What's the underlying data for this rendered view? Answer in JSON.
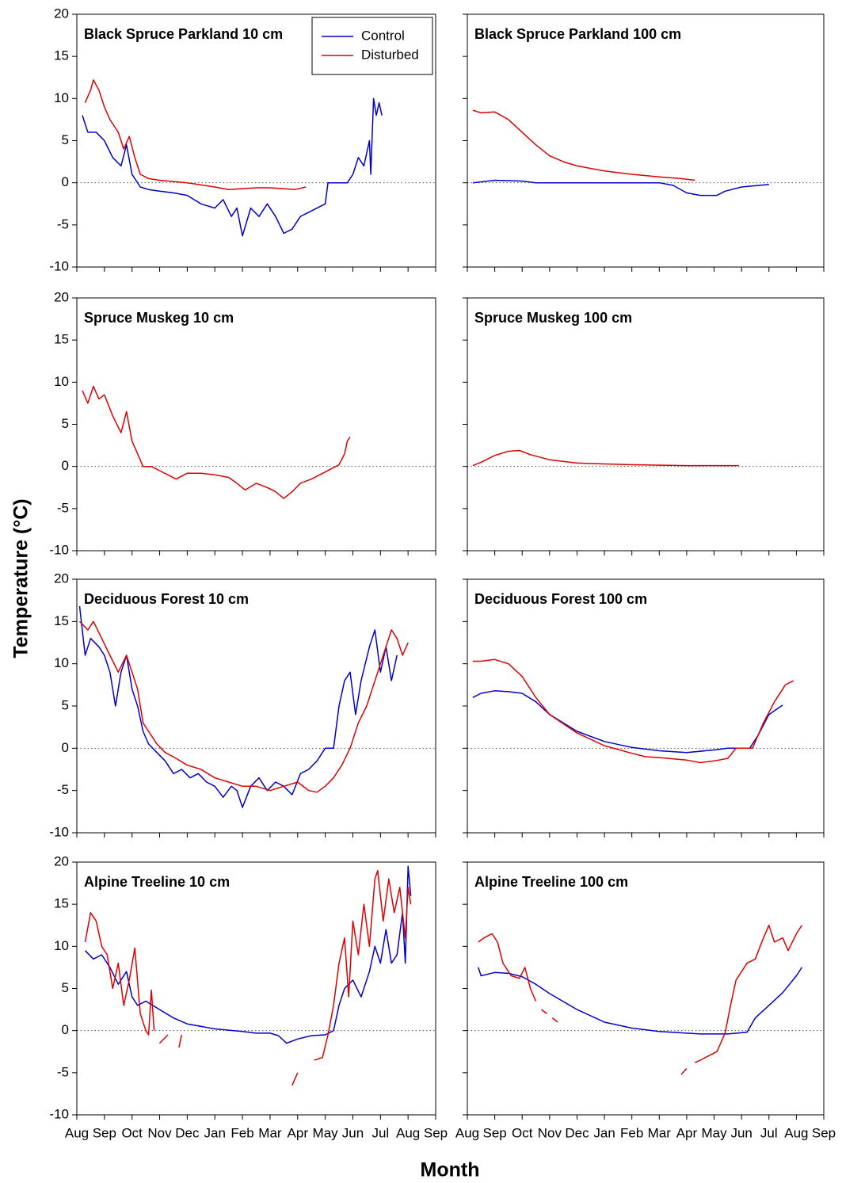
{
  "xlabel": "Month",
  "ylabel": "Temperature (°C)",
  "xlim": [
    0,
    13
  ],
  "xticks": [
    {
      "value": 0,
      "label": "Aug"
    },
    {
      "value": 1,
      "label": "Sep"
    },
    {
      "value": 2,
      "label": "Oct"
    },
    {
      "value": 3,
      "label": "Nov"
    },
    {
      "value": 4,
      "label": "Dec"
    },
    {
      "value": 5,
      "label": "Jan"
    },
    {
      "value": 6,
      "label": "Feb"
    },
    {
      "value": 7,
      "label": "Mar"
    },
    {
      "value": 8,
      "label": "Apr"
    },
    {
      "value": 9,
      "label": "May"
    },
    {
      "value": 10,
      "label": "Jun"
    },
    {
      "value": 11,
      "label": "Jul"
    },
    {
      "value": 12,
      "label": "Aug"
    },
    {
      "value": 13,
      "label": "Sep"
    }
  ],
  "chart_data": [
    {
      "type": "line",
      "title": "Black Spruce Parkland 10 cm",
      "ylim": [
        -10,
        20
      ],
      "yticks": [
        -10,
        -5,
        0,
        5,
        10,
        15,
        20
      ],
      "reference_line": 0,
      "legend": "top-right",
      "series": [
        {
          "name": "Control",
          "color": "#0000cc",
          "x": [
            0.2,
            0.4,
            0.7,
            1.0,
            1.3,
            1.6,
            1.8,
            2.0,
            2.3,
            2.6,
            3.0,
            3.5,
            4.0,
            4.5,
            5.0,
            5.3,
            5.6,
            5.8,
            6.0,
            6.3,
            6.6,
            6.9,
            7.2,
            7.5,
            7.8,
            8.1,
            8.4,
            8.7,
            9.0,
            9.1,
            9.8,
            10.0,
            10.2,
            10.4,
            10.6,
            10.65,
            10.75,
            10.85,
            10.95,
            11.05
          ],
          "values": [
            8,
            6,
            6,
            5,
            3,
            2,
            4.5,
            1,
            -0.5,
            -0.8,
            -1,
            -1.2,
            -1.5,
            -2.5,
            -3,
            -2,
            -4,
            -3,
            -6.3,
            -3,
            -4,
            -2.5,
            -4,
            -6,
            -5.5,
            -4,
            -3.5,
            -3,
            -2.5,
            0,
            0,
            1,
            3,
            2,
            5,
            1,
            10,
            8,
            9.5,
            8
          ]
        },
        {
          "name": "Disturbed",
          "color": "#dd0000",
          "x": [
            0.3,
            0.5,
            0.6,
            0.8,
            1.0,
            1.2,
            1.5,
            1.7,
            1.9,
            2.1,
            2.3,
            2.6,
            3.0,
            4.0,
            5.0,
            5.5,
            6.0,
            6.5,
            7.0,
            7.5,
            7.9,
            8.3
          ],
          "values": [
            9.5,
            11,
            12.2,
            11,
            9,
            7.5,
            6,
            4,
            5.5,
            3,
            1,
            0.5,
            0.3,
            0,
            -0.5,
            -0.8,
            -0.7,
            -0.6,
            -0.6,
            -0.7,
            -0.8,
            -0.5
          ]
        }
      ]
    },
    {
      "type": "line",
      "title": "Black Spruce Parkland 100 cm",
      "ylim": [
        -10,
        20
      ],
      "yticks": [
        -10,
        -5,
        0,
        5,
        10,
        15,
        20
      ],
      "reference_line": 0,
      "series": [
        {
          "color": "#0000cc",
          "x": [
            0.2,
            1.0,
            2.0,
            2.5,
            4.0,
            6.0,
            7.0,
            7.5,
            8.0,
            8.5,
            9.1,
            9.4,
            10.0,
            11.0
          ],
          "values": [
            0,
            0.3,
            0.2,
            0,
            0,
            0,
            0,
            -0.3,
            -1.2,
            -1.5,
            -1.5,
            -1,
            -0.5,
            -0.2
          ]
        },
        {
          "color": "#dd0000",
          "x": [
            0.2,
            0.5,
            1.0,
            1.5,
            2.0,
            2.5,
            3.0,
            3.5,
            4.0,
            5.0,
            6.0,
            7.0,
            7.8,
            8.3
          ],
          "values": [
            8.6,
            8.3,
            8.4,
            7.5,
            6,
            4.5,
            3.2,
            2.5,
            2,
            1.4,
            1,
            0.7,
            0.5,
            0.3
          ]
        }
      ]
    },
    {
      "type": "line",
      "title": "Spruce Muskeg 10 cm",
      "ylim": [
        -10,
        20
      ],
      "yticks": [
        -10,
        -5,
        0,
        5,
        10,
        15,
        20
      ],
      "reference_line": 0,
      "series": [
        {
          "color": "#dd0000",
          "x": [
            0.2,
            0.4,
            0.6,
            0.8,
            1.0,
            1.3,
            1.6,
            1.8,
            2.0,
            2.2,
            2.4,
            2.7,
            3.0,
            3.3,
            3.6,
            4.0,
            4.5,
            5.0,
            5.5,
            5.8,
            6.1,
            6.5,
            6.9,
            7.2,
            7.5,
            7.8,
            8.1,
            8.5,
            8.8,
            9.2,
            9.5,
            9.7,
            9.8,
            9.9
          ],
          "values": [
            9,
            7.5,
            9.5,
            8,
            8.5,
            6,
            4,
            6.5,
            3,
            1.5,
            0,
            0,
            -0.5,
            -1,
            -1.5,
            -0.8,
            -0.8,
            -1,
            -1.3,
            -2,
            -2.8,
            -2,
            -2.5,
            -3,
            -3.8,
            -3,
            -2,
            -1.5,
            -1,
            -0.3,
            0.2,
            1.5,
            3,
            3.5
          ]
        },
        {
          "color": "#0000cc",
          "x": [],
          "values": []
        }
      ]
    },
    {
      "type": "line",
      "title": "Spruce Muskeg 100 cm",
      "ylim": [
        -10,
        20
      ],
      "yticks": [
        -10,
        -5,
        0,
        5,
        10,
        15,
        20
      ],
      "reference_line": 0,
      "series": [
        {
          "color": "#dd0000",
          "x": [
            0.2,
            0.5,
            1.0,
            1.5,
            1.9,
            2.3,
            3.0,
            4.0,
            5.0,
            6.0,
            8.0,
            9.9
          ],
          "values": [
            0.1,
            0.5,
            1.3,
            1.8,
            1.9,
            1.4,
            0.8,
            0.4,
            0.3,
            0.2,
            0.1,
            0.1
          ]
        }
      ]
    },
    {
      "type": "line",
      "title": "Deciduous Forest 10 cm",
      "ylim": [
        -10,
        20
      ],
      "yticks": [
        -10,
        -5,
        0,
        5,
        10,
        15,
        20
      ],
      "reference_line": 0,
      "series": [
        {
          "color": "#0000cc",
          "x": [
            0.1,
            0.3,
            0.5,
            0.8,
            1.0,
            1.2,
            1.4,
            1.6,
            1.8,
            2.0,
            2.2,
            2.4,
            2.6,
            2.9,
            3.2,
            3.5,
            3.8,
            4.1,
            4.4,
            4.7,
            5.0,
            5.3,
            5.6,
            5.8,
            6.0,
            6.3,
            6.6,
            6.9,
            7.2,
            7.5,
            7.8,
            8.1,
            8.4,
            8.7,
            9.0,
            9.3,
            9.5,
            9.7,
            9.9,
            10.1,
            10.3,
            10.6,
            10.8,
            11.0,
            11.2,
            11.4,
            11.6
          ],
          "values": [
            16.8,
            11,
            13,
            12,
            11,
            9,
            5,
            9,
            11,
            7,
            5,
            2,
            0.5,
            -0.5,
            -1.5,
            -3,
            -2.5,
            -3.5,
            -3,
            -4,
            -4.5,
            -5.8,
            -4.5,
            -5,
            -7,
            -4.5,
            -3.5,
            -5,
            -4,
            -4.5,
            -5.5,
            -3,
            -2.5,
            -1.5,
            0,
            0,
            5,
            8,
            9,
            4,
            8,
            12,
            14,
            9,
            12,
            8,
            11
          ]
        },
        {
          "color": "#dd0000",
          "x": [
            0.1,
            0.4,
            0.6,
            0.9,
            1.2,
            1.5,
            1.8,
            2.0,
            2.2,
            2.4,
            2.6,
            2.9,
            3.2,
            3.6,
            4.0,
            4.5,
            5.0,
            5.5,
            6.0,
            6.5,
            7.0,
            7.5,
            8.0,
            8.4,
            8.7,
            9.0,
            9.3,
            9.6,
            9.9,
            10.2,
            10.5,
            10.7,
            11.0,
            11.2,
            11.4,
            11.6,
            11.8,
            12.0
          ],
          "values": [
            15,
            14,
            15,
            13,
            11,
            9,
            11,
            9,
            7,
            3,
            2,
            0.5,
            -0.5,
            -1.2,
            -2,
            -2.5,
            -3.5,
            -4,
            -4.5,
            -4.5,
            -5,
            -4.5,
            -4,
            -5,
            -5.2,
            -4.5,
            -3.5,
            -2,
            0,
            3,
            5,
            7,
            10,
            12,
            14,
            13,
            11,
            12.5
          ]
        }
      ]
    },
    {
      "type": "line",
      "title": "Deciduous Forest 100 cm",
      "ylim": [
        -10,
        20
      ],
      "yticks": [
        -10,
        -5,
        0,
        5,
        10,
        15,
        20
      ],
      "reference_line": 0,
      "series": [
        {
          "color": "#0000cc",
          "x": [
            0.2,
            0.5,
            1.0,
            1.5,
            2.0,
            2.5,
            3.0,
            4.0,
            5.0,
            6.0,
            7.0,
            8.0,
            9.0,
            9.5,
            10.3,
            10.6,
            11.0,
            11.5
          ],
          "values": [
            6,
            6.5,
            6.8,
            6.7,
            6.5,
            5.5,
            4,
            2,
            0.8,
            0.1,
            -0.3,
            -0.5,
            -0.2,
            0,
            0,
            1.5,
            4,
            5.1
          ]
        },
        {
          "color": "#dd0000",
          "x": [
            0.2,
            0.5,
            1.0,
            1.5,
            2.0,
            2.5,
            3.0,
            4.0,
            5.0,
            6.0,
            6.5,
            7.0,
            8.0,
            8.5,
            9.0,
            9.5,
            9.8,
            10.4,
            10.8,
            11.2,
            11.6,
            11.9
          ],
          "values": [
            10.3,
            10.3,
            10.5,
            10,
            8.5,
            6,
            4,
            1.8,
            0.3,
            -0.6,
            -1,
            -1.1,
            -1.4,
            -1.7,
            -1.5,
            -1.2,
            0,
            0,
            3,
            5.5,
            7.5,
            8
          ]
        }
      ]
    },
    {
      "type": "line",
      "title": "Alpine Treeline 10 cm",
      "ylim": [
        -10,
        20
      ],
      "yticks": [
        -10,
        -5,
        0,
        5,
        10,
        15,
        20
      ],
      "reference_line": 0,
      "series": [
        {
          "color": "#0000cc",
          "x": [
            0.3,
            0.6,
            0.9,
            1.2,
            1.5,
            1.8,
            2.0,
            2.2,
            2.5,
            3.0,
            3.5,
            4.0,
            5.0,
            6.0,
            6.5,
            7.0,
            7.3,
            7.6,
            8.0,
            8.5,
            9.0,
            9.3,
            9.5,
            9.7,
            10.0,
            10.3,
            10.6,
            10.8,
            11.0,
            11.2,
            11.4,
            11.6,
            11.8,
            11.9,
            12.0,
            12.1
          ],
          "values": [
            9.5,
            8.5,
            9,
            7.5,
            5.5,
            7,
            4,
            3,
            3.5,
            2.5,
            1.5,
            0.8,
            0.2,
            -0.1,
            -0.3,
            -0.3,
            -0.6,
            -1.5,
            -1,
            -0.6,
            -0.5,
            0,
            3,
            5,
            6,
            4,
            7,
            10,
            8,
            12,
            8,
            9,
            14,
            8,
            19.5,
            16
          ]
        },
        {
          "color": "#dd0000",
          "x": [
            0.3,
            0.5,
            0.7,
            0.9,
            1.1,
            1.3,
            1.5,
            1.7,
            1.9,
            2.1,
            2.3,
            2.5,
            2.6,
            2.7,
            2.8,
            null,
            3.0,
            3.3,
            null,
            3.7,
            3.8,
            null,
            7.8,
            8.0,
            null,
            8.3,
            null,
            8.6,
            8.9,
            9.1,
            9.3,
            9.5,
            9.7,
            9.85,
            10.0,
            10.2,
            10.4,
            10.6,
            10.8,
            10.9,
            11.1,
            11.3,
            11.5,
            11.7,
            11.9,
            12.0,
            12.1
          ],
          "values": [
            10.5,
            14,
            13,
            10,
            9,
            5,
            8,
            3,
            6,
            9.8,
            2,
            0,
            -0.5,
            4.8,
            0,
            null,
            -1.5,
            -0.5,
            null,
            -2,
            -0.5,
            null,
            -6.5,
            -5,
            null,
            -4.5,
            null,
            -3.5,
            -3.2,
            -0.5,
            3,
            8,
            11,
            4,
            13,
            9,
            15,
            10,
            18,
            19,
            13,
            18,
            14,
            17,
            11,
            17,
            15
          ]
        }
      ]
    },
    {
      "type": "line",
      "title": "Alpine Treeline 100 cm",
      "ylim": [
        -10,
        20
      ],
      "yticks": [
        -10,
        -5,
        0,
        5,
        10,
        15,
        20
      ],
      "reference_line": 0,
      "series": [
        {
          "color": "#0000cc",
          "x": [
            0.4,
            0.5,
            1.0,
            1.5,
            2.0,
            2.5,
            3.0,
            4.0,
            5.0,
            6.0,
            7.0,
            8.0,
            8.5,
            9.0,
            9.5,
            10.2,
            10.5,
            11.0,
            11.5,
            12.0,
            12.2
          ],
          "values": [
            7.5,
            6.5,
            6.9,
            6.8,
            6.4,
            5.5,
            4.4,
            2.5,
            1,
            0.3,
            -0.1,
            -0.3,
            -0.4,
            -0.4,
            -0.4,
            -0.2,
            1.5,
            3,
            4.5,
            6.5,
            7.5
          ]
        },
        {
          "color": "#dd0000",
          "x": [
            0.4,
            0.6,
            0.9,
            1.1,
            1.3,
            1.6,
            1.9,
            2.1,
            2.3,
            2.5,
            null,
            2.7,
            2.9,
            null,
            3.1,
            3.3,
            null,
            7.8,
            8.0,
            null,
            8.3,
            8.5,
            8.8,
            9.1,
            9.4,
            9.6,
            9.8,
            10.0,
            10.2,
            10.5,
            10.8,
            11.0,
            11.2,
            11.5,
            11.7,
            12.0,
            12.2
          ],
          "values": [
            10.5,
            11,
            11.5,
            10.5,
            8,
            6.5,
            6.2,
            7.5,
            5,
            3.5,
            null,
            2.5,
            2,
            null,
            1.5,
            1,
            null,
            -5.2,
            -4.5,
            null,
            -3.8,
            -3.5,
            -3,
            -2.5,
            -0.3,
            3,
            6,
            7,
            8,
            8.5,
            11,
            12.5,
            10.5,
            11,
            9.5,
            11.5,
            12.5
          ]
        }
      ]
    }
  ]
}
